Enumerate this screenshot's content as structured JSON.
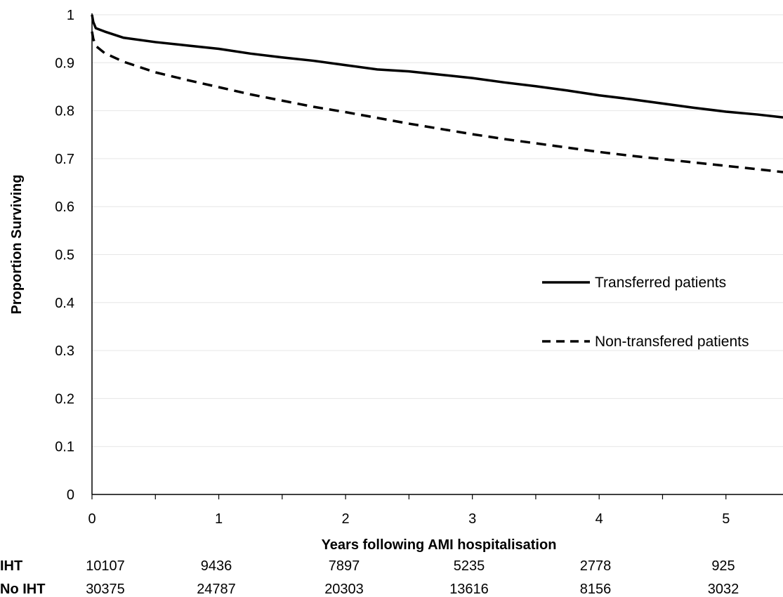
{
  "chart_data": {
    "type": "line",
    "title": "",
    "xlabel": "Years following AMI hospitalisation",
    "ylabel": "Proportion Surviving",
    "xlim": [
      0,
      5.45
    ],
    "ylim": [
      0,
      1
    ],
    "x_ticks": [
      "0",
      "1",
      "2",
      "3",
      "4",
      "5"
    ],
    "y_ticks": [
      "0",
      "0.1",
      "0.2",
      "0.3",
      "0.4",
      "0.5",
      "0.6",
      "0.7",
      "0.8",
      "0.9",
      "1"
    ],
    "grid": "horizontal",
    "legend_position": "center-right",
    "series": [
      {
        "name": "Transferred patients",
        "style": "solid",
        "color": "#000000",
        "x": [
          0,
          0.01,
          0.03,
          0.1,
          0.25,
          0.5,
          0.75,
          1,
          1.25,
          1.5,
          1.75,
          2,
          2.25,
          2.5,
          2.75,
          3,
          3.25,
          3.5,
          3.75,
          4,
          4.25,
          4.5,
          4.75,
          5,
          5.25,
          5.45
        ],
        "y": [
          1.0,
          0.985,
          0.972,
          0.965,
          0.952,
          0.943,
          0.936,
          0.929,
          0.919,
          0.911,
          0.904,
          0.895,
          0.886,
          0.882,
          0.875,
          0.868,
          0.859,
          0.851,
          0.842,
          0.832,
          0.824,
          0.815,
          0.806,
          0.798,
          0.792,
          0.786
        ]
      },
      {
        "name": "Non-transfered patients",
        "style": "dashed",
        "color": "#000000",
        "x": [
          0,
          0.01,
          0.03,
          0.1,
          0.25,
          0.5,
          0.75,
          1,
          1.25,
          1.5,
          1.75,
          2,
          2.25,
          2.5,
          2.75,
          3,
          3.25,
          3.5,
          3.75,
          4,
          4.25,
          4.5,
          4.75,
          5,
          5.25,
          5.45
        ],
        "y": [
          0.965,
          0.95,
          0.935,
          0.92,
          0.902,
          0.88,
          0.864,
          0.849,
          0.834,
          0.821,
          0.808,
          0.797,
          0.785,
          0.773,
          0.762,
          0.751,
          0.741,
          0.732,
          0.723,
          0.714,
          0.706,
          0.699,
          0.692,
          0.685,
          0.678,
          0.672
        ]
      }
    ],
    "risk_table": {
      "rows": [
        {
          "label": "IHT",
          "values": [
            "10107",
            "9436",
            "7897",
            "5235",
            "2778",
            "925"
          ]
        },
        {
          "label": "No IHT",
          "values": [
            "30375",
            "24787",
            "20303",
            "13616",
            "8156",
            "3032"
          ]
        }
      ]
    }
  }
}
